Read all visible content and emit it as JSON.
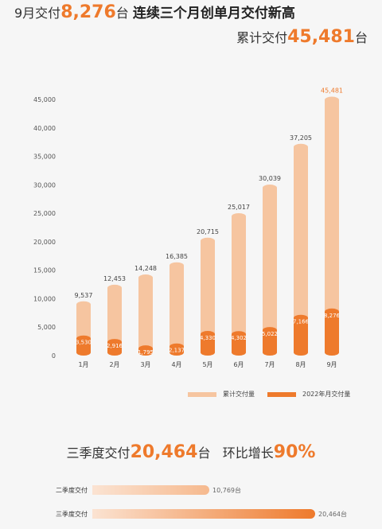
{
  "headline": {
    "prefix": "9月交付",
    "value": "8,276",
    "unit": "台",
    "suffix": "连续三个月创单月交付新高"
  },
  "cumulative": {
    "prefix": "累计交付",
    "value": "45,481",
    "unit": "台"
  },
  "colors": {
    "accent": "#ee7a2c",
    "cumulative_bar": "#f6c5a0",
    "monthly_bar": "#ee7a2c"
  },
  "chart_data": {
    "type": "bar",
    "categories": [
      "1月",
      "2月",
      "3月",
      "4月",
      "5月",
      "6月",
      "7月",
      "8月",
      "9月"
    ],
    "series": [
      {
        "name": "累计交付量",
        "values": [
          9537,
          12453,
          14248,
          16385,
          20715,
          25017,
          30039,
          37205,
          45481
        ],
        "labels": [
          "9,537",
          "12,453",
          "14,248",
          "16,385",
          "20,715",
          "25,017",
          "30,039",
          "37,205",
          "45,481"
        ]
      },
      {
        "name": "2022年月交付量",
        "values": [
          3530,
          2916,
          1795,
          2137,
          4330,
          4302,
          5022,
          7166,
          8276
        ],
        "labels": [
          "3,530",
          "2,916",
          "1,795",
          "2,137",
          "4,330",
          "4,302",
          "5,022",
          "7,166",
          "8,276"
        ]
      }
    ],
    "yticks": [
      "0",
      "5,000",
      "10,000",
      "15,000",
      "20,000",
      "25,000",
      "30,000",
      "35,000",
      "40,000",
      "45,000"
    ],
    "ylim": [
      0,
      45000
    ],
    "legend_position": "bottom-right",
    "grid": false
  },
  "legend": {
    "cumulative": "累计交付量",
    "monthly": "2022年月交付量"
  },
  "quarter": {
    "prefix": "三季度交付",
    "value": "20,464",
    "unit": "台",
    "growth_label": "环比增长",
    "growth_value": "90%",
    "rows": [
      {
        "label": "二季度交付",
        "value": 10769,
        "value_label": "10,769台"
      },
      {
        "label": "三季度交付",
        "value": 20464,
        "value_label": "20,464台"
      }
    ]
  }
}
